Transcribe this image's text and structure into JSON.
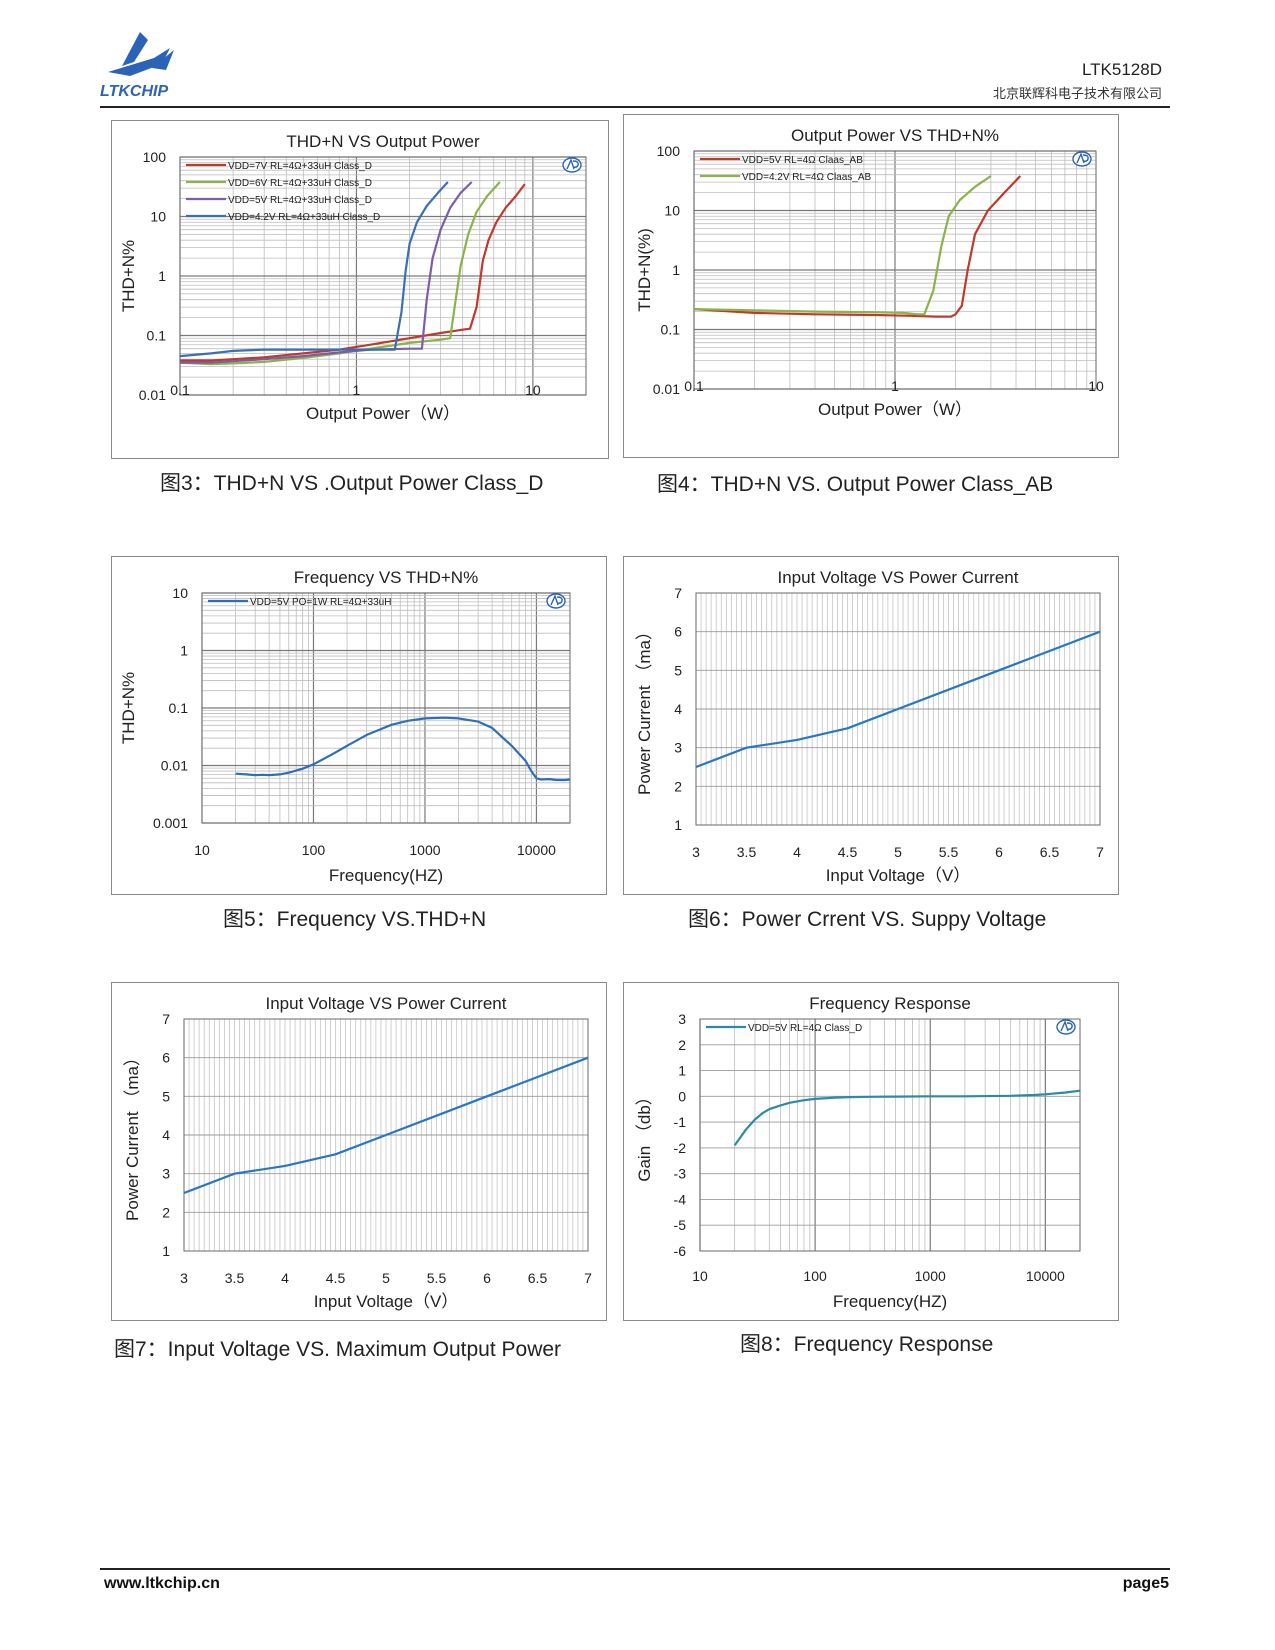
{
  "header": {
    "logo_text": "LTKCHIP",
    "doc_id": "LTK5128D",
    "company": "北京联辉科电子技术有限公司"
  },
  "figures": [
    {
      "caption": "图3：THD+N VS .Output Power Class_D",
      "chart_data": {
        "type": "line",
        "title": "THD+N VS Output Power",
        "xlabel": "Output Power（W）",
        "ylabel": "THD+N%",
        "xscale": "log",
        "yscale": "log",
        "xlim": [
          0.1,
          20
        ],
        "ylim": [
          0.01,
          100
        ],
        "xticks": [
          "0.1",
          "1",
          "10"
        ],
        "yticks": [
          "100",
          "10",
          "1",
          "0.1",
          "0.01"
        ],
        "legend_position": "top-left",
        "series": [
          {
            "name": "VDD=7V  RL=4Ω+33uH Class_D",
            "color": "#c0392b",
            "x": [
              0.1,
              0.15,
              0.2,
              0.3,
              0.5,
              0.8,
              1.2,
              2.0,
              3.0,
              4.0,
              4.4,
              4.8,
              5.2,
              5.6,
              6.2,
              7.0,
              8.0,
              9.0
            ],
            "y": [
              0.038,
              0.038,
              0.04,
              0.043,
              0.05,
              0.058,
              0.07,
              0.09,
              0.11,
              0.125,
              0.13,
              0.3,
              1.8,
              4,
              8,
              14,
              22,
              35
            ]
          },
          {
            "name": "VDD=6V  RL=4Ω+33uH Class_D",
            "color": "#8ab34a",
            "x": [
              0.1,
              0.15,
              0.2,
              0.3,
              0.5,
              0.8,
              1.2,
              2.0,
              3.0,
              3.4,
              3.6,
              3.9,
              4.3,
              4.8,
              5.5,
              6.5
            ],
            "y": [
              0.035,
              0.033,
              0.034,
              0.036,
              0.042,
              0.05,
              0.06,
              0.075,
              0.085,
              0.09,
              0.3,
              1.5,
              5,
              12,
              22,
              38
            ]
          },
          {
            "name": "VDD=5V  RL=4Ω+33uH Class_D",
            "color": "#7b5ea7",
            "x": [
              0.1,
              0.15,
              0.2,
              0.3,
              0.5,
              0.8,
              1.2,
              2.0,
              2.35,
              2.5,
              2.7,
              3.0,
              3.4,
              3.9,
              4.5
            ],
            "y": [
              0.035,
              0.035,
              0.037,
              0.04,
              0.045,
              0.052,
              0.058,
              0.06,
              0.06,
              0.4,
              2,
              6,
              14,
              25,
              38
            ]
          },
          {
            "name": "VDD=4.2V  RL=4Ω+33uH Class_D",
            "color": "#3b6fb5",
            "x": [
              0.1,
              0.15,
              0.2,
              0.3,
              0.5,
              0.8,
              1.2,
              1.65,
              1.8,
              1.9,
              2.0,
              2.2,
              2.5,
              2.9,
              3.3
            ],
            "y": [
              0.045,
              0.05,
              0.055,
              0.058,
              0.058,
              0.058,
              0.058,
              0.058,
              0.25,
              1.2,
              3.5,
              8,
              15,
              25,
              38
            ]
          }
        ]
      }
    },
    {
      "caption": "图4：THD+N VS. Output Power Class_AB",
      "chart_data": {
        "type": "line",
        "title": "Output Power VS THD+N%",
        "xlabel": "Output Power（W）",
        "ylabel": "THD+N(%)",
        "xscale": "log",
        "yscale": "log",
        "xlim": [
          0.1,
          10
        ],
        "ylim": [
          0.01,
          100
        ],
        "xticks": [
          "0.1",
          "1",
          "10"
        ],
        "yticks": [
          "100",
          "10",
          "1",
          "0.1",
          "0.01"
        ],
        "legend_position": "top-left",
        "series": [
          {
            "name": "VDD=5V  RL=4Ω  Claas_AB",
            "color": "#c0392b",
            "x": [
              0.1,
              0.2,
              0.4,
              0.8,
              1.2,
              1.6,
              1.9,
              2.0,
              2.15,
              2.3,
              2.5,
              2.9,
              3.5,
              4.2
            ],
            "y": [
              0.22,
              0.19,
              0.18,
              0.175,
              0.17,
              0.165,
              0.165,
              0.18,
              0.25,
              1,
              4,
              10,
              20,
              38
            ]
          },
          {
            "name": "VDD=4.2V  RL=4Ω  Claas_AB",
            "color": "#8ab34a",
            "x": [
              0.1,
              0.2,
              0.4,
              0.8,
              1.1,
              1.3,
              1.4,
              1.55,
              1.7,
              1.85,
              2.1,
              2.5,
              3.0
            ],
            "y": [
              0.22,
              0.21,
              0.2,
              0.195,
              0.19,
              0.18,
              0.18,
              0.45,
              2.5,
              8,
              15,
              25,
              38
            ]
          }
        ]
      }
    },
    {
      "caption": "图5：Frequency VS.THD+N",
      "chart_data": {
        "type": "line",
        "title": "Frequency VS THD+N%",
        "xlabel": "Frequency(HZ)",
        "ylabel": "THD+N%",
        "xscale": "log",
        "yscale": "log",
        "xlim": [
          10,
          20000
        ],
        "ylim": [
          0.001,
          10
        ],
        "xticks": [
          "10",
          "100",
          "1000",
          "10000"
        ],
        "yticks": [
          "10",
          "1",
          "0.1",
          "0.01",
          "0.001"
        ],
        "legend_position": "top-left",
        "series": [
          {
            "name": "VDD=5V  PO=1W  RL=4Ω+33uH",
            "color": "#2f6fb9",
            "x": [
              20,
              25,
              30,
              35,
              40,
              50,
              60,
              80,
              100,
              150,
              200,
              300,
              500,
              700,
              1000,
              1500,
              2000,
              3000,
              4000,
              6000,
              8000,
              9000,
              10000,
              11000,
              13000,
              15000,
              18000,
              20000
            ],
            "y": [
              0.0072,
              0.007,
              0.0068,
              0.0069,
              0.0068,
              0.007,
              0.0075,
              0.0088,
              0.0105,
              0.016,
              0.022,
              0.034,
              0.051,
              0.06,
              0.066,
              0.068,
              0.066,
              0.058,
              0.045,
              0.022,
              0.012,
              0.008,
              0.006,
              0.0057,
              0.0058,
              0.0056,
              0.0056,
              0.0057
            ]
          }
        ]
      }
    },
    {
      "caption": "图6：Power Crrent VS. Suppy Voltage",
      "chart_data": {
        "type": "line",
        "title": "Input Voltage VS Power Current",
        "xlabel": "Input Voltage（V）",
        "ylabel": "Power Current （ma）",
        "xlim": [
          3,
          7
        ],
        "ylim": [
          1,
          7
        ],
        "xticks": [
          "3",
          "3.5",
          "4",
          "4.5",
          "5",
          "5.5",
          "6",
          "6.5",
          "7"
        ],
        "yticks": [
          "7",
          "6",
          "5",
          "4",
          "3",
          "2",
          "1"
        ],
        "series": [
          {
            "name": "",
            "color": "#2777c4",
            "x": [
              3,
              3.5,
              4,
              4.5,
              5,
              5.5,
              6,
              6.5,
              7
            ],
            "y": [
              2.5,
              3.0,
              3.2,
              3.5,
              4.0,
              4.5,
              5.0,
              5.5,
              6.0
            ]
          }
        ]
      }
    },
    {
      "caption": "图7：Input  Voltage  VS.  Maximum  Output  Power",
      "chart_data": {
        "type": "line",
        "title": "Input Voltage VS Power Current",
        "xlabel": "Input Voltage（V）",
        "ylabel": "Power Current （ma）",
        "xlim": [
          3,
          7
        ],
        "ylim": [
          1,
          7
        ],
        "xticks": [
          "3",
          "3.5",
          "4",
          "4.5",
          "5",
          "5.5",
          "6",
          "6.5",
          "7"
        ],
        "yticks": [
          "7",
          "6",
          "5",
          "4",
          "3",
          "2",
          "1"
        ],
        "series": [
          {
            "name": "",
            "color": "#2777c4",
            "x": [
              3,
              3.5,
              4,
              4.5,
              5,
              5.5,
              6,
              6.5,
              7
            ],
            "y": [
              2.5,
              3.0,
              3.2,
              3.5,
              4.0,
              4.5,
              5.0,
              5.5,
              6.0
            ]
          }
        ]
      }
    },
    {
      "caption": "图8：Frequency Response",
      "chart_data": {
        "type": "line",
        "title": "Frequency Response",
        "xlabel": "Frequency(HZ)",
        "ylabel": "Gain （db）",
        "xscale": "log",
        "xlim": [
          10,
          20000
        ],
        "ylim": [
          -6,
          3
        ],
        "xticks": [
          "10",
          "100",
          "1000",
          "10000"
        ],
        "yticks": [
          "3",
          "2",
          "1",
          "0",
          "-1",
          "-2",
          "-3",
          "-4",
          "-5",
          "-6"
        ],
        "legend_position": "top-left",
        "series": [
          {
            "name": "VDD=5V  RL=4Ω  Class_D",
            "color": "#2b8aa8",
            "x": [
              20,
              25,
              30,
              35,
              40,
              50,
              60,
              80,
              100,
              150,
              200,
              300,
              500,
              1000,
              2000,
              5000,
              8000,
              10000,
              15000,
              20000
            ],
            "y": [
              -1.9,
              -1.3,
              -0.9,
              -0.65,
              -0.5,
              -0.35,
              -0.25,
              -0.15,
              -0.1,
              -0.05,
              -0.03,
              -0.02,
              -0.01,
              0,
              0,
              0.02,
              0.05,
              0.08,
              0.15,
              0.22
            ]
          }
        ]
      }
    }
  ],
  "footer": {
    "website": "www.ltkchip.cn",
    "page": "page5"
  }
}
